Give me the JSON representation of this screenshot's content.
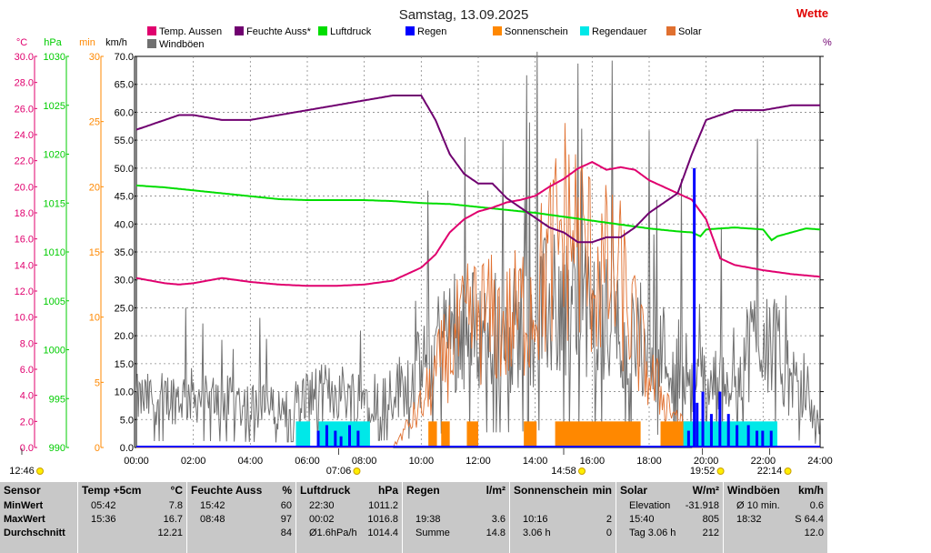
{
  "title": "Samstag, 13.09.2025",
  "brand_text": "Wette",
  "brand_color": "#e00000",
  "chart_data": {
    "type": "line",
    "x_ticks": [
      "00:00",
      "02:00",
      "04:00",
      "06:00",
      "08:00",
      "10:00",
      "12:00",
      "14:00",
      "16:00",
      "18:00",
      "20:00",
      "22:00",
      "24:00"
    ],
    "x_range_hours": [
      0,
      24
    ],
    "grid": true,
    "legend": [
      {
        "name": "Temp. Aussen",
        "color": "#e0006e"
      },
      {
        "name": "Feuchte Auss*",
        "color": "#700070"
      },
      {
        "name": "Luftdruck",
        "color": "#00dd00"
      },
      {
        "name": "Regen",
        "color": "#0000ff"
      },
      {
        "name": "Sonnenschein",
        "color": "#ff8800"
      },
      {
        "name": "Regendauer",
        "color": "#00e8e8"
      },
      {
        "name": "Solar",
        "color": "#e07030"
      },
      {
        "name": "Windböen",
        "color": "#707070"
      }
    ],
    "axes": [
      {
        "unit": "°C",
        "color": "#e0006e",
        "range": [
          0,
          30
        ],
        "ticks": [
          "0.0",
          "2.0",
          "4.0",
          "6.0",
          "8.0",
          "10.0",
          "12.0",
          "14.0",
          "16.0",
          "18.0",
          "20.0",
          "22.0",
          "24.0",
          "26.0",
          "28.0",
          "30.0"
        ]
      },
      {
        "unit": "hPa",
        "color": "#00cc00",
        "range": [
          990,
          1030
        ],
        "ticks": [
          "990",
          "995",
          "1000",
          "1005",
          "1010",
          "1015",
          "1020",
          "1025",
          "1030"
        ]
      },
      {
        "unit": "min",
        "color": "#ff8800",
        "range": [
          0,
          30
        ],
        "ticks": [
          "0",
          "5",
          "10",
          "15",
          "20",
          "25",
          "30"
        ]
      },
      {
        "unit": "km/h",
        "color": "#000000",
        "range": [
          0,
          70
        ],
        "ticks": [
          "0.0",
          "5.0",
          "10.0",
          "15.0",
          "20.0",
          "25.0",
          "30.0",
          "35.0",
          "40.0",
          "45.0",
          "50.0",
          "55.0",
          "60.0",
          "65.0",
          "70.0"
        ]
      }
    ],
    "right_unit": "%",
    "series": [
      {
        "name": "Temp. Aussen",
        "axis": "°C",
        "x": [
          0,
          1,
          1.5,
          2,
          2.5,
          3,
          4,
          5,
          6,
          7,
          8,
          9,
          10,
          10.5,
          11,
          11.5,
          12,
          12.5,
          13,
          13.5,
          14,
          14.5,
          15,
          15.5,
          16,
          16.5,
          17,
          17.5,
          18,
          18.5,
          19,
          19.5,
          20,
          20.5,
          21,
          22,
          23,
          24
        ],
        "y": [
          13.0,
          12.6,
          12.5,
          12.6,
          12.8,
          13.0,
          12.7,
          12.5,
          12.4,
          12.4,
          12.5,
          12.8,
          13.8,
          14.8,
          16.5,
          17.5,
          18.1,
          18.4,
          18.8,
          19.0,
          19.3,
          20.0,
          20.6,
          21.4,
          21.9,
          21.3,
          21.5,
          21.3,
          20.5,
          20.0,
          19.5,
          19.0,
          17.5,
          14.5,
          14.0,
          13.6,
          13.3,
          13.1
        ]
      },
      {
        "name": "Feuchte Auss*",
        "axis": "right_pct",
        "x": [
          0,
          0.5,
          1,
          1.5,
          2,
          3,
          4,
          5,
          6,
          7,
          8,
          9,
          10,
          10.5,
          11,
          11.5,
          12,
          12.5,
          13,
          13.5,
          14,
          14.5,
          15,
          15.5,
          16,
          16.5,
          17,
          17.5,
          18,
          18.5,
          19,
          19.5,
          20,
          20.5,
          21,
          22,
          23,
          24
        ],
        "y": [
          85,
          86,
          87,
          88,
          88,
          87,
          87,
          88,
          89,
          90,
          91,
          92,
          92,
          87,
          80,
          76,
          74,
          74,
          71,
          69,
          67,
          65,
          64,
          62,
          62,
          63,
          63,
          65,
          68,
          70,
          72,
          80,
          87,
          88,
          89,
          89,
          90,
          90
        ]
      },
      {
        "name": "Luftdruck",
        "axis": "hPa",
        "x": [
          0,
          1,
          2,
          3,
          4,
          5,
          6,
          7,
          8,
          9,
          10,
          11,
          12,
          13,
          14,
          15,
          16,
          17,
          18,
          19,
          19.5,
          19.8,
          20,
          20.5,
          21,
          22,
          22.3,
          22.5,
          23,
          23.5,
          24
        ],
        "y": [
          1016.8,
          1016.6,
          1016.3,
          1016.0,
          1015.7,
          1015.4,
          1015.3,
          1015.3,
          1015.3,
          1015.2,
          1015.0,
          1014.9,
          1014.6,
          1014.3,
          1014.0,
          1013.6,
          1013.2,
          1012.8,
          1012.4,
          1012.1,
          1012.0,
          1011.6,
          1012.3,
          1012.4,
          1012.5,
          1012.3,
          1011.2,
          1011.6,
          1012.0,
          1012.4,
          1012.3
        ]
      },
      {
        "name": "Windböen",
        "axis": "km/h",
        "type": "noise",
        "envelope_x": [
          0,
          2,
          4,
          5,
          6,
          7,
          8,
          9,
          10,
          11,
          12,
          13,
          14,
          15,
          16,
          17,
          18,
          19,
          20,
          21,
          22,
          23,
          24
        ],
        "envelope_y": [
          11,
          12,
          10,
          9,
          12,
          13,
          12,
          13,
          18,
          28,
          27,
          27,
          30,
          34,
          30,
          28,
          24,
          20,
          15,
          18,
          28,
          15,
          5
        ]
      },
      {
        "name": "Solar",
        "axis": "min",
        "type": "noise",
        "envelope_x": [
          0,
          9,
          9.5,
          10,
          11,
          12,
          13,
          14,
          14.5,
          15,
          15.5,
          16,
          17,
          18,
          19,
          19.5,
          24
        ],
        "envelope_y": [
          0,
          0,
          2,
          4,
          10,
          13,
          12,
          15,
          18,
          22,
          21,
          18,
          16,
          7,
          3,
          0,
          0
        ]
      },
      {
        "name": "Sonnenschein",
        "axis": "min",
        "type": "bars",
        "spans": [
          [
            10.25,
            10.55
          ],
          [
            10.7,
            11.0
          ],
          [
            11.6,
            12.0
          ],
          [
            13.6,
            14.05
          ],
          [
            14.7,
            17.7
          ],
          [
            18.4,
            19.4
          ]
        ],
        "value": 2
      },
      {
        "name": "Regendauer",
        "axis": "min",
        "type": "bars",
        "spans": [
          [
            5.6,
            6.1
          ],
          [
            6.4,
            8.2
          ],
          [
            19.2,
            22.5
          ]
        ],
        "value": 2
      },
      {
        "name": "Regen",
        "axis": "km/h",
        "type": "spikes",
        "x": [
          6.4,
          6.7,
          7.0,
          7.2,
          7.5,
          7.8,
          19.4,
          19.6,
          19.7,
          19.9,
          20.2,
          20.5,
          20.8,
          21.1,
          21.5,
          21.8,
          22.0,
          22.3
        ],
        "y": [
          3,
          4,
          3,
          2,
          4,
          3,
          3,
          50,
          8,
          10,
          6,
          10,
          6,
          4,
          4,
          3,
          3,
          3
        ]
      }
    ]
  },
  "time_markers": [
    {
      "text": "12:46",
      "hour": 0
    },
    {
      "text": "07:06",
      "hour": 7.1
    },
    {
      "text": "14:58",
      "hour": 15.0
    },
    {
      "text": "19:52",
      "hour": 19.87
    },
    {
      "text": "22:14",
      "hour": 22.23
    }
  ],
  "table": {
    "columns": [
      {
        "head": "Sensor",
        "unit": "",
        "rows": [
          "MinWert",
          "MaxWert",
          "Durchschnitt"
        ]
      },
      {
        "head": "Temp +5cm",
        "unit": "°C",
        "rows": [
          [
            "05:42",
            "7.8"
          ],
          [
            "15:36",
            "16.7"
          ],
          [
            "",
            "12.21"
          ]
        ]
      },
      {
        "head": "Feuchte Auss",
        "unit": "%",
        "rows": [
          [
            "15:42",
            "60"
          ],
          [
            "08:48",
            "97"
          ],
          [
            "",
            "84"
          ]
        ]
      },
      {
        "head": "Luftdruck",
        "unit": "hPa",
        "rows": [
          [
            "22:30",
            "1011.2"
          ],
          [
            "00:02",
            "1016.8"
          ],
          [
            "Ø1.6hPa/h",
            "1014.4"
          ]
        ]
      },
      {
        "head": "Regen",
        "unit": "l/m²",
        "rows": [
          [
            "",
            ""
          ],
          [
            "19:38",
            "3.6"
          ],
          [
            "Summe",
            "14.8"
          ]
        ]
      },
      {
        "head": "Sonnenschein",
        "unit": "min",
        "rows": [
          [
            "",
            ""
          ],
          [
            "10:16",
            "2"
          ],
          [
            "3.06 h",
            "0"
          ]
        ]
      },
      {
        "head": "Solar",
        "unit": "W/m²",
        "rows": [
          [
            "Elevation",
            "-31.918"
          ],
          [
            "15:40",
            "805"
          ],
          [
            "Tag 3.06 h",
            "212"
          ]
        ]
      },
      {
        "head": "Windböen",
        "unit": "km/h",
        "rows": [
          [
            "Ø 10 min.",
            "0.6"
          ],
          [
            "18:32",
            "S 64.4"
          ],
          [
            "",
            "12.0"
          ]
        ]
      }
    ]
  }
}
